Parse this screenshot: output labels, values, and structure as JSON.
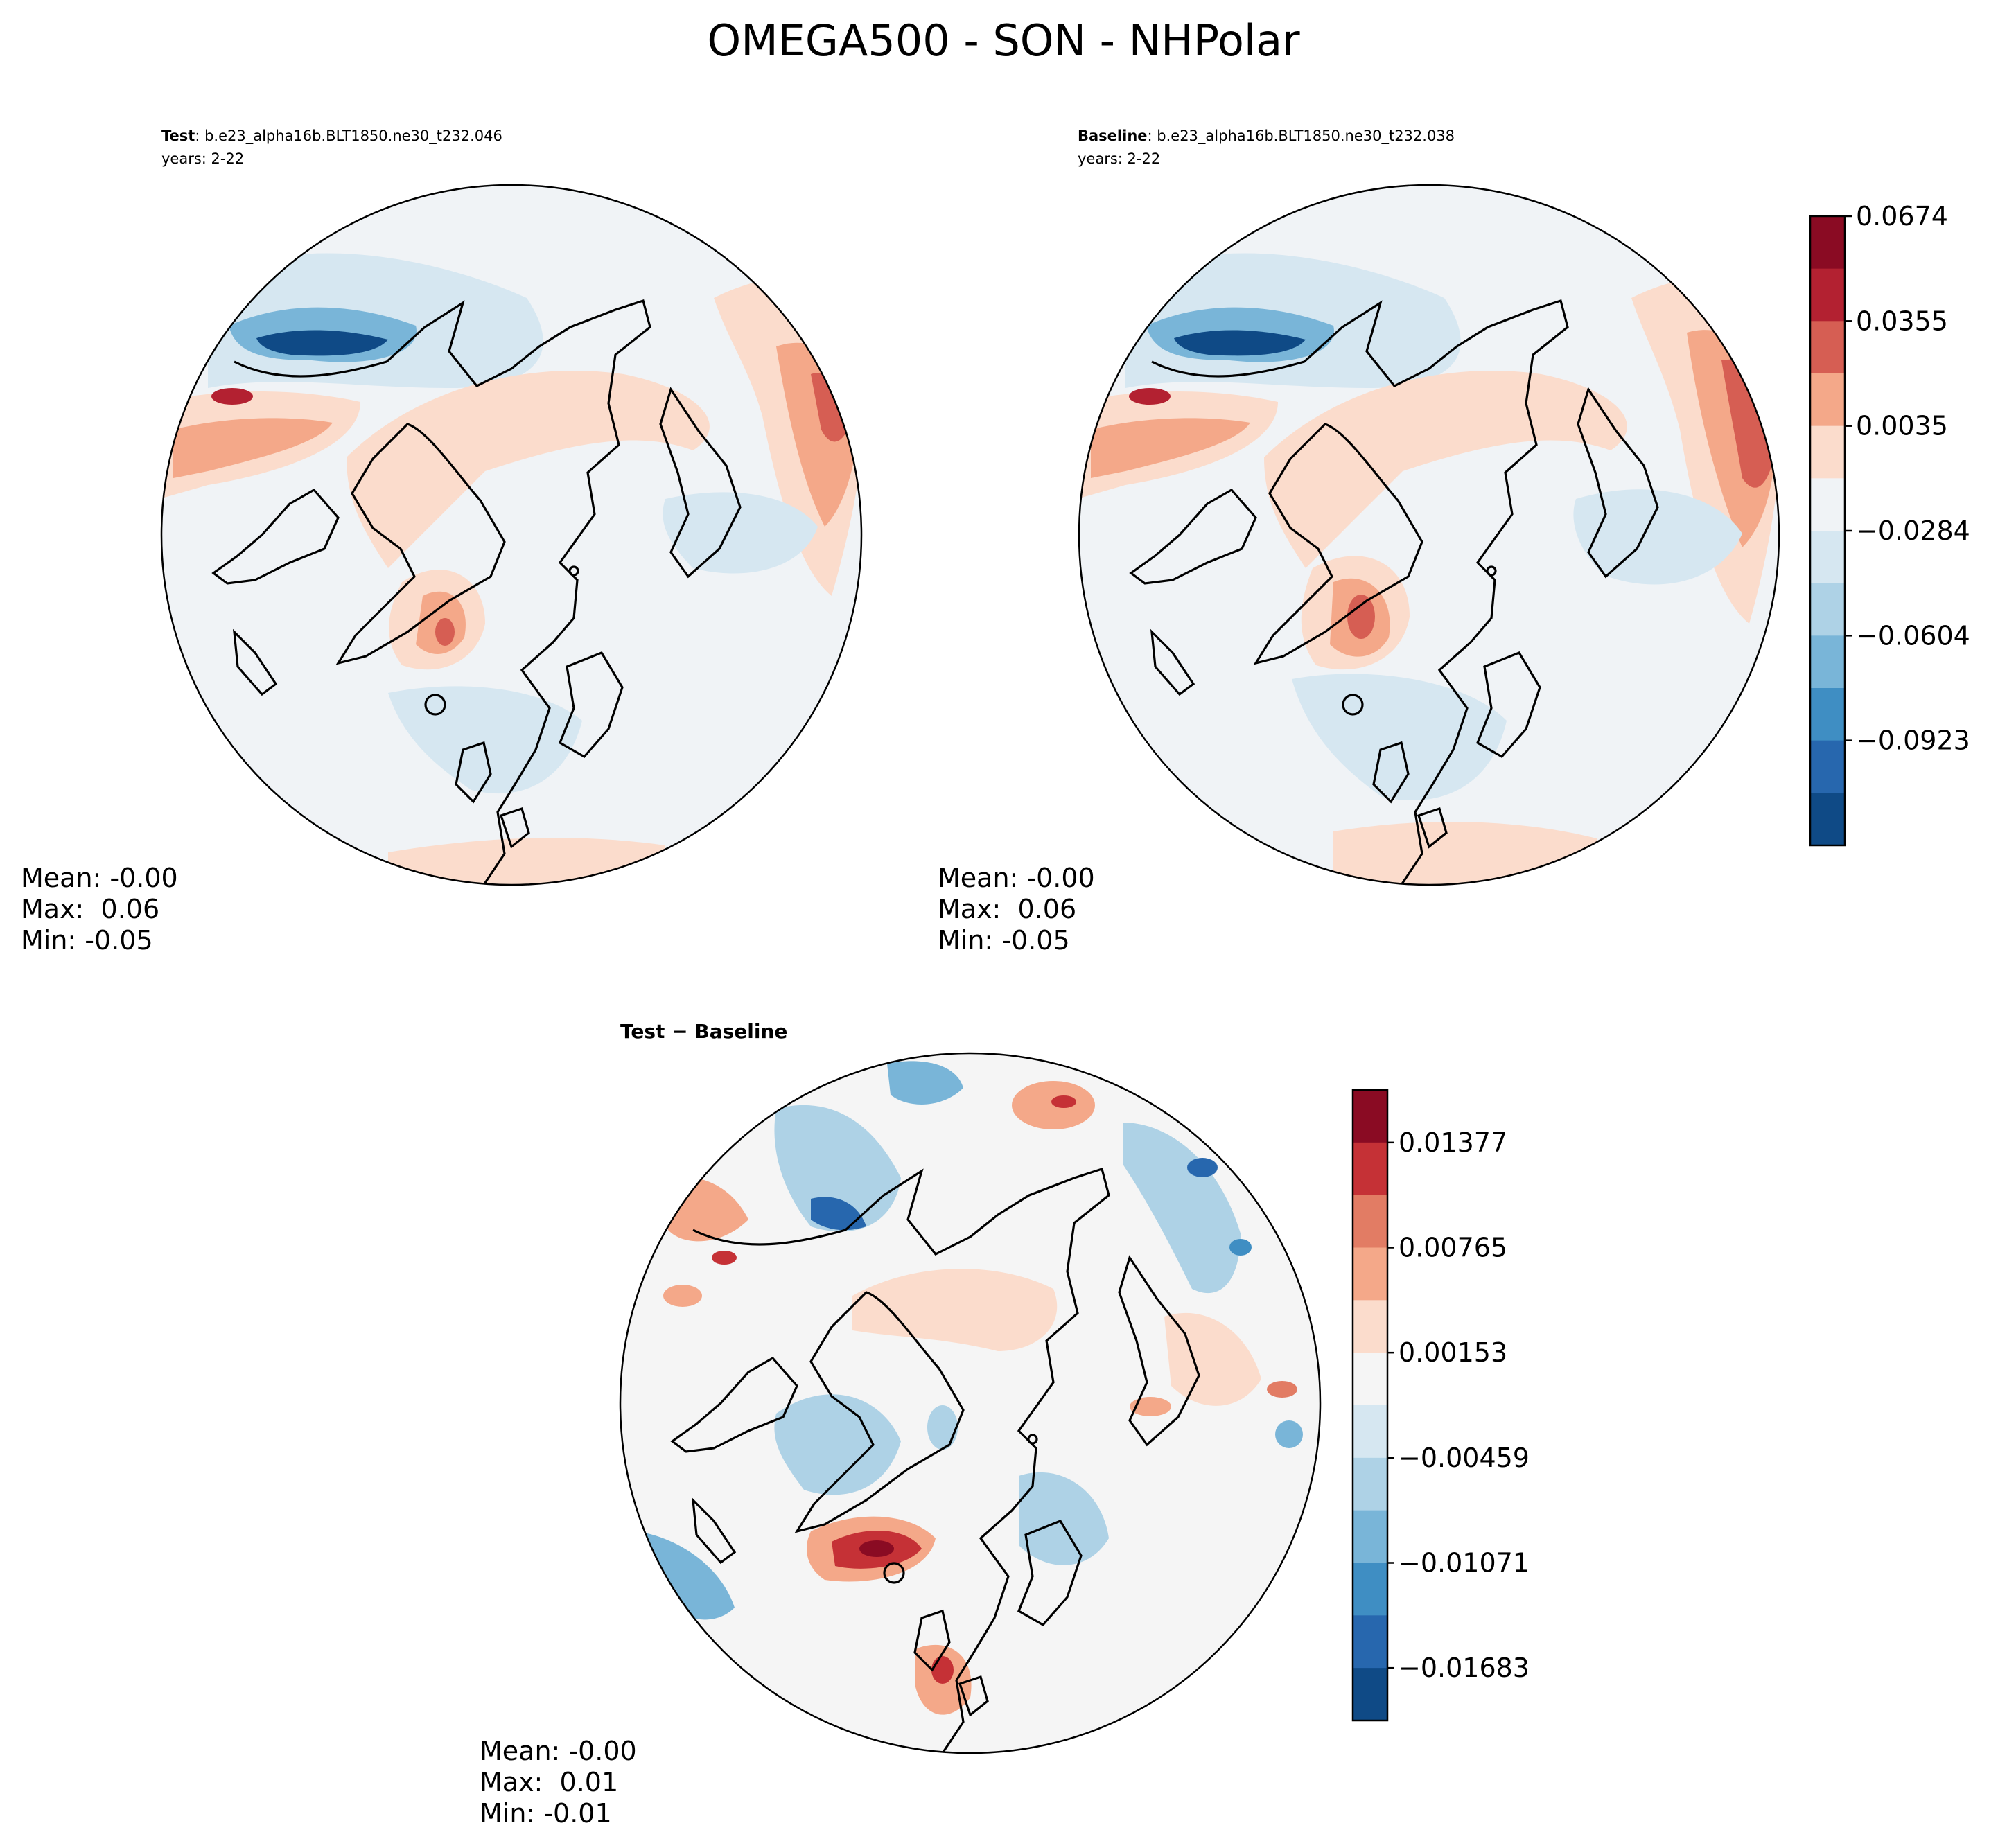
{
  "title": "OMEGA500 - SON - NHPolar",
  "colors": {
    "main_levels": [
      "#0f4a86",
      "#2767ae",
      "#3f8ec3",
      "#79b5d8",
      "#aed2e6",
      "#d6e7f1",
      "#f0f3f6",
      "#fbdccc",
      "#f4a889",
      "#d65e53",
      "#b32131",
      "#8a0b23"
    ],
    "diff_levels": [
      "#0f4a86",
      "#2767ae",
      "#3f8ec3",
      "#79b5d8",
      "#aed2e6",
      "#d6e7f1",
      "#f5f5f5",
      "#fbdccc",
      "#f4a889",
      "#e27c64",
      "#c53136",
      "#8a0b23"
    ]
  },
  "chart_data": [
    {
      "type": "heatmap",
      "projection": "north-polar-stereographic",
      "panel": "test",
      "title_bold": "Test",
      "title_case": ": b.e23_alpha16b.BLT1850.ne30_t232.046",
      "years": "years: 2-22",
      "stats": [
        "Mean: -0.00",
        "Max:  0.06",
        "Min: -0.05"
      ],
      "value_range": [
        -0.05,
        0.06
      ],
      "colorbar_shared_with": "baseline"
    },
    {
      "type": "heatmap",
      "projection": "north-polar-stereographic",
      "panel": "baseline",
      "title_bold": "Baseline",
      "title_case": ": b.e23_alpha16b.BLT1850.ne30_t232.038",
      "years": "years: 2-22",
      "stats": [
        "Mean: -0.00",
        "Max:  0.06",
        "Min: -0.05"
      ],
      "value_range": [
        -0.05,
        0.06
      ],
      "colorbar": {
        "levels_top_to_bottom": [
          "0.0674",
          "0.0355",
          "0.0035",
          "−0.0284",
          "−0.0604",
          "−0.0923"
        ]
      }
    },
    {
      "type": "heatmap",
      "projection": "north-polar-stereographic",
      "panel": "difference",
      "title": "Test − Baseline",
      "stats": [
        "Mean: -0.00",
        "Max:  0.01",
        "Min: -0.01"
      ],
      "value_range": [
        -0.01,
        0.01
      ],
      "colorbar": {
        "levels_top_to_bottom": [
          "0.01377",
          "0.00765",
          "0.00153",
          "−0.00459",
          "−0.01071",
          "−0.01683"
        ]
      }
    }
  ]
}
